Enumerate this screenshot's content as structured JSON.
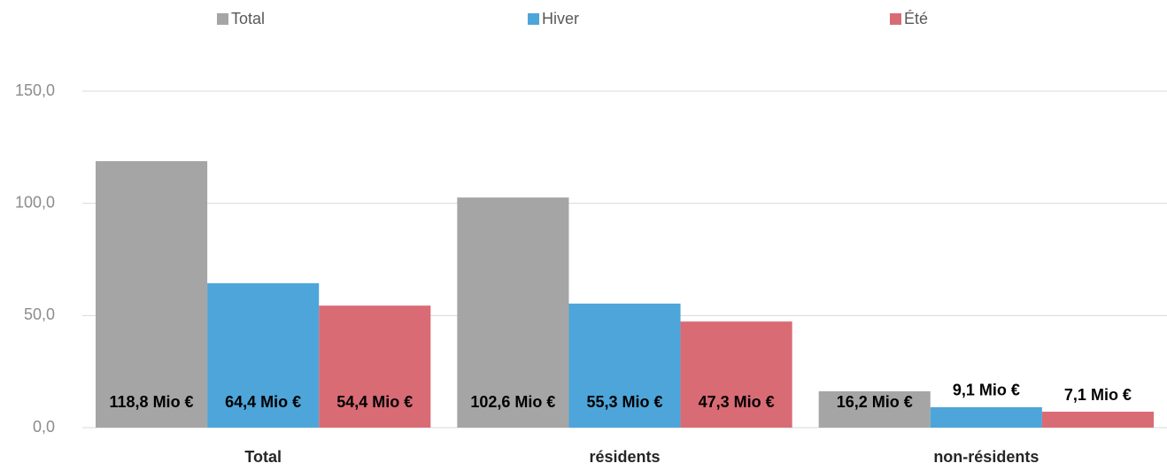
{
  "chart_data": {
    "type": "bar",
    "categories": [
      "Total",
      "résidents",
      "non-résidents"
    ],
    "series": [
      {
        "name": "Total",
        "color": "#a5a5a5",
        "values": [
          118.8,
          102.6,
          16.2
        ],
        "value_labels": [
          "118,8 Mio €",
          "102,6 Mio €",
          "16,2 Mio €"
        ]
      },
      {
        "name": "Hiver",
        "color": "#4ea5d9",
        "values": [
          64.4,
          55.3,
          9.1
        ],
        "value_labels": [
          "64,4 Mio €",
          "55,3 Mio €",
          "9,1 Mio €"
        ]
      },
      {
        "name": "Été",
        "color": "#d96b75",
        "values": [
          54.4,
          47.3,
          7.1
        ],
        "value_labels": [
          "54,4 Mio €",
          "47,3 Mio €",
          "7,1 Mio €"
        ]
      }
    ],
    "ylim": [
      0,
      150
    ],
    "yticks": [
      {
        "value": 0,
        "label": "0,0"
      },
      {
        "value": 50,
        "label": "50,0"
      },
      {
        "value": 100,
        "label": "100,0"
      },
      {
        "value": 150,
        "label": "150,0"
      }
    ],
    "grid": true,
    "legend": "top"
  }
}
